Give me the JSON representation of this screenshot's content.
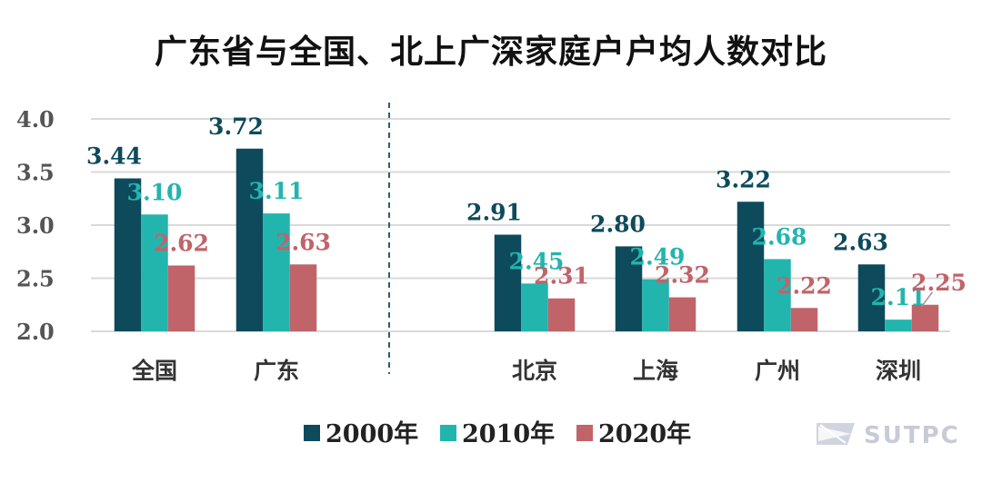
{
  "chart_data": {
    "type": "bar",
    "title": "广东省与全国、北上广深家庭户户均人数对比",
    "categories": [
      "全国",
      "广东",
      "北京",
      "上海",
      "广州",
      "深圳"
    ],
    "series": [
      {
        "name": "2000年",
        "color": "#0d4a5c",
        "label_color": "#0d4a5c",
        "values": [
          3.44,
          3.72,
          2.91,
          2.8,
          3.22,
          2.63
        ]
      },
      {
        "name": "2010年",
        "color": "#22b5ae",
        "label_color": "#22b5ae",
        "values": [
          3.1,
          3.11,
          2.45,
          2.49,
          2.68,
          2.11
        ]
      },
      {
        "name": "2020年",
        "color": "#c0646a",
        "label_color": "#c0646a",
        "values": [
          2.62,
          2.63,
          2.31,
          2.32,
          2.22,
          2.25
        ]
      }
    ],
    "data_labels": [
      [
        "3.44",
        "3.72",
        "2.91",
        "2.80",
        "3.22",
        "2.63"
      ],
      [
        "3.10",
        "3.11",
        "2.45",
        "2.49",
        "2.68",
        "2.11"
      ],
      [
        "2.62",
        "2.63",
        "2.31",
        "2.32",
        "2.22",
        "2.25"
      ]
    ],
    "y_ticks": [
      "2.0",
      "2.5",
      "3.0",
      "3.5",
      "4.0"
    ],
    "ylim": [
      2.0,
      4.0
    ],
    "grid": true,
    "legend_position": "bottom",
    "divider_after_category": 2,
    "gridline_color": "#d9d9d9",
    "divider_color": "#2c5d6e"
  },
  "logo": {
    "text": "SUTPC",
    "color": "#c7cbd6"
  }
}
